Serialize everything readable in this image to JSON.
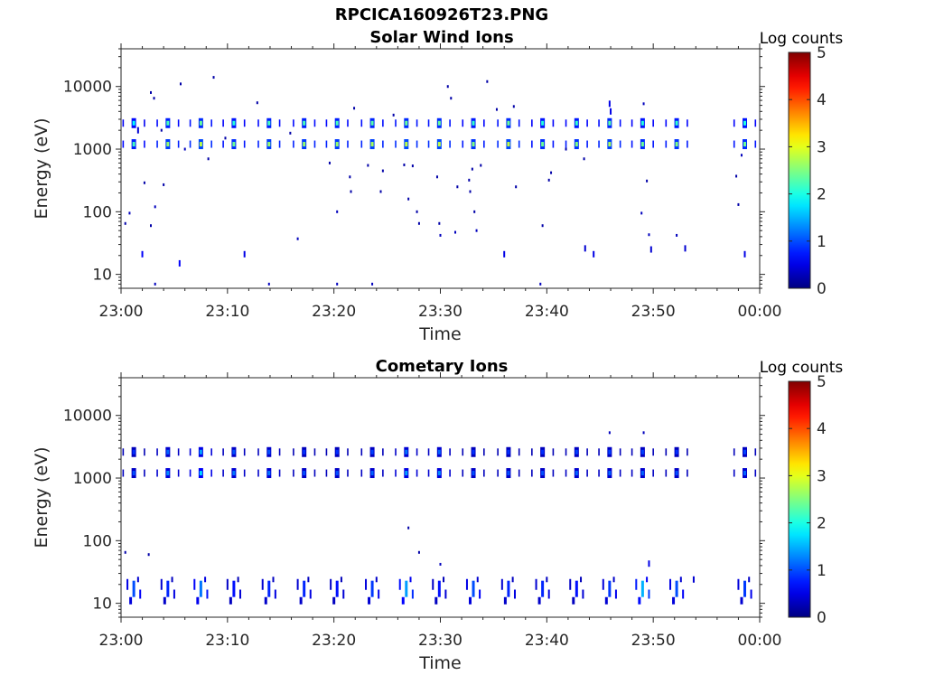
{
  "figure_title": "RPCICA160926T23.PNG",
  "chart_data": [
    {
      "type": "heatmap",
      "title": "Solar Wind Ions",
      "xlabel": "Time",
      "ylabel": "Energy (eV)",
      "x_ticks": [
        "23:00",
        "23:10",
        "23:20",
        "23:30",
        "23:40",
        "23:50",
        "00:00"
      ],
      "y_ticks": [
        "10",
        "100",
        "1000",
        "10000"
      ],
      "y_scale": "log",
      "ylim": [
        6,
        40000
      ],
      "xlim_minutes": [
        0,
        60
      ],
      "colorbar": {
        "label": "Log counts",
        "ticks": [
          "0",
          "1",
          "2",
          "3",
          "4",
          "5"
        ],
        "range": [
          0,
          5
        ],
        "colormap": "jet"
      },
      "bursts": [
        {
          "t": 1.2,
          "energies": [
            2600,
            1200
          ],
          "level": 2.2
        },
        {
          "t": 4.4,
          "energies": [
            2600,
            1200
          ],
          "level": 2.6
        },
        {
          "t": 7.5,
          "energies": [
            2600,
            1200
          ],
          "level": 2.8
        },
        {
          "t": 10.6,
          "energies": [
            2600,
            1200
          ],
          "level": 2.4
        },
        {
          "t": 13.9,
          "energies": [
            2600,
            1200
          ],
          "level": 2.6
        },
        {
          "t": 17.2,
          "energies": [
            2600,
            1200
          ],
          "level": 2.6
        },
        {
          "t": 20.3,
          "energies": [
            2600,
            1200
          ],
          "level": 2.6
        },
        {
          "t": 23.6,
          "energies": [
            2600,
            1200
          ],
          "level": 2.7
        },
        {
          "t": 26.8,
          "energies": [
            2600,
            1200
          ],
          "level": 2.8
        },
        {
          "t": 29.9,
          "energies": [
            2600,
            1200
          ],
          "level": 2.8
        },
        {
          "t": 33.1,
          "energies": [
            2600,
            1200
          ],
          "level": 2.5
        },
        {
          "t": 36.4,
          "energies": [
            2600,
            1200
          ],
          "level": 2.8
        },
        {
          "t": 39.6,
          "energies": [
            2600,
            1200
          ],
          "level": 2.4
        },
        {
          "t": 42.8,
          "energies": [
            2600,
            1200
          ],
          "level": 2.5
        },
        {
          "t": 45.9,
          "energies": [
            2600,
            1200
          ],
          "level": 2.7
        },
        {
          "t": 49.0,
          "energies": [
            2600,
            1200
          ],
          "level": 2.4
        },
        {
          "t": 52.2,
          "energies": [
            2600,
            1200
          ],
          "level": 2.5
        },
        {
          "t": 58.6,
          "energies": [
            2600,
            1200
          ],
          "level": 2.4
        }
      ],
      "scatter": [
        {
          "t": 0.4,
          "e": 65,
          "level": 0.2
        },
        {
          "t": 0.8,
          "e": 95,
          "level": 0.3
        },
        {
          "t": 1.6,
          "e": 2000,
          "level": 0.4
        },
        {
          "t": 2.0,
          "e": 21,
          "level": 0.6
        },
        {
          "t": 2.2,
          "e": 290,
          "level": 0.2
        },
        {
          "t": 2.8,
          "e": 60,
          "level": 0.2
        },
        {
          "t": 2.8,
          "e": 8000,
          "level": 0.2
        },
        {
          "t": 3.1,
          "e": 6500,
          "level": 0.2
        },
        {
          "t": 3.2,
          "e": 120,
          "level": 0.3
        },
        {
          "t": 3.2,
          "e": 7,
          "level": 0.3
        },
        {
          "t": 3.8,
          "e": 2000,
          "level": 0.2
        },
        {
          "t": 4.0,
          "e": 270,
          "level": 0.2
        },
        {
          "t": 5.5,
          "e": 15,
          "level": 0.6
        },
        {
          "t": 5.6,
          "e": 11000,
          "level": 0.2
        },
        {
          "t": 6.0,
          "e": 1000,
          "level": 0.3
        },
        {
          "t": 8.2,
          "e": 700,
          "level": 0.2
        },
        {
          "t": 8.7,
          "e": 14000,
          "level": 0.2
        },
        {
          "t": 9.8,
          "e": 1500,
          "level": 0.2
        },
        {
          "t": 11.6,
          "e": 21,
          "level": 0.5
        },
        {
          "t": 12.8,
          "e": 5500,
          "level": 0.2
        },
        {
          "t": 13.9,
          "e": 7,
          "level": 0.3
        },
        {
          "t": 15.9,
          "e": 1800,
          "level": 0.2
        },
        {
          "t": 16.6,
          "e": 37,
          "level": 0.3
        },
        {
          "t": 19.6,
          "e": 600,
          "level": 0.2
        },
        {
          "t": 20.3,
          "e": 100,
          "level": 0.3
        },
        {
          "t": 20.3,
          "e": 7,
          "level": 0.3
        },
        {
          "t": 21.5,
          "e": 360,
          "level": 0.2
        },
        {
          "t": 21.6,
          "e": 210,
          "level": 0.2
        },
        {
          "t": 21.9,
          "e": 4500,
          "level": 0.2
        },
        {
          "t": 23.2,
          "e": 550,
          "level": 0.2
        },
        {
          "t": 23.6,
          "e": 7,
          "level": 0.3
        },
        {
          "t": 24.4,
          "e": 210,
          "level": 0.2
        },
        {
          "t": 24.6,
          "e": 450,
          "level": 0.2
        },
        {
          "t": 25.6,
          "e": 3500,
          "level": 0.2
        },
        {
          "t": 26.6,
          "e": 560,
          "level": 0.2
        },
        {
          "t": 27.0,
          "e": 160,
          "level": 0.2
        },
        {
          "t": 27.4,
          "e": 540,
          "level": 0.2
        },
        {
          "t": 27.8,
          "e": 100,
          "level": 0.2
        },
        {
          "t": 28.0,
          "e": 65,
          "level": 0.2
        },
        {
          "t": 29.7,
          "e": 360,
          "level": 0.2
        },
        {
          "t": 29.9,
          "e": 65,
          "level": 0.2
        },
        {
          "t": 30.0,
          "e": 42,
          "level": 0.3
        },
        {
          "t": 30.7,
          "e": 10000,
          "level": 0.2
        },
        {
          "t": 31.0,
          "e": 6500,
          "level": 0.2
        },
        {
          "t": 31.4,
          "e": 47,
          "level": 0.3
        },
        {
          "t": 31.6,
          "e": 250,
          "level": 0.2
        },
        {
          "t": 32.7,
          "e": 320,
          "level": 0.2
        },
        {
          "t": 32.8,
          "e": 210,
          "level": 0.2
        },
        {
          "t": 33.0,
          "e": 480,
          "level": 0.2
        },
        {
          "t": 33.2,
          "e": 100,
          "level": 0.2
        },
        {
          "t": 33.4,
          "e": 50,
          "level": 0.3
        },
        {
          "t": 33.8,
          "e": 550,
          "level": 0.2
        },
        {
          "t": 34.4,
          "e": 12000,
          "level": 0.2
        },
        {
          "t": 35.3,
          "e": 4300,
          "level": 0.2
        },
        {
          "t": 36.0,
          "e": 21,
          "level": 0.5
        },
        {
          "t": 36.9,
          "e": 4800,
          "level": 0.2
        },
        {
          "t": 37.1,
          "e": 250,
          "level": 0.2
        },
        {
          "t": 39.6,
          "e": 60,
          "level": 0.2
        },
        {
          "t": 39.4,
          "e": 7,
          "level": 0.3
        },
        {
          "t": 40.2,
          "e": 320,
          "level": 0.2
        },
        {
          "t": 40.4,
          "e": 420,
          "level": 0.2
        },
        {
          "t": 41.8,
          "e": 1000,
          "level": 0.2
        },
        {
          "t": 43.5,
          "e": 700,
          "level": 0.2
        },
        {
          "t": 43.6,
          "e": 26,
          "level": 0.4
        },
        {
          "t": 44.4,
          "e": 21,
          "level": 0.5
        },
        {
          "t": 45.9,
          "e": 5300,
          "level": 0.5
        },
        {
          "t": 46.0,
          "e": 4000,
          "level": 0.5
        },
        {
          "t": 48.9,
          "e": 95,
          "level": 0.3
        },
        {
          "t": 49.1,
          "e": 5300,
          "level": 0.3
        },
        {
          "t": 49.4,
          "e": 310,
          "level": 0.2
        },
        {
          "t": 49.6,
          "e": 43,
          "level": 0.3
        },
        {
          "t": 49.8,
          "e": 25,
          "level": 0.4
        },
        {
          "t": 52.2,
          "e": 42,
          "level": 0.3
        },
        {
          "t": 53.0,
          "e": 26,
          "level": 0.4
        },
        {
          "t": 57.8,
          "e": 370,
          "level": 0.2
        },
        {
          "t": 58.0,
          "e": 130,
          "level": 0.2
        },
        {
          "t": 58.6,
          "e": 21,
          "level": 0.5
        },
        {
          "t": 58.3,
          "e": 800,
          "level": 0.3
        }
      ]
    },
    {
      "type": "heatmap",
      "title": "Cometary Ions",
      "xlabel": "Time",
      "ylabel": "Energy (eV)",
      "x_ticks": [
        "23:00",
        "23:10",
        "23:20",
        "23:30",
        "23:40",
        "23:50",
        "00:00"
      ],
      "y_ticks": [
        "10",
        "100",
        "1000",
        "10000"
      ],
      "y_scale": "log",
      "ylim": [
        6,
        40000
      ],
      "xlim_minutes": [
        0,
        60
      ],
      "colorbar": {
        "label": "Log counts",
        "ticks": [
          "0",
          "1",
          "2",
          "3",
          "4",
          "5"
        ],
        "range": [
          0,
          5
        ],
        "colormap": "jet"
      },
      "bursts": [
        {
          "t": 1.2,
          "energies": [
            2600,
            1200
          ],
          "level": 1.0
        },
        {
          "t": 4.4,
          "energies": [
            2600,
            1200
          ],
          "level": 1.3
        },
        {
          "t": 7.5,
          "energies": [
            2600,
            1200
          ],
          "level": 1.7
        },
        {
          "t": 10.6,
          "energies": [
            2600,
            1200
          ],
          "level": 1.2
        },
        {
          "t": 13.9,
          "energies": [
            2600,
            1200
          ],
          "level": 1.2
        },
        {
          "t": 17.2,
          "energies": [
            2600,
            1200
          ],
          "level": 1.0
        },
        {
          "t": 20.3,
          "energies": [
            2600,
            1200
          ],
          "level": 1.0
        },
        {
          "t": 23.6,
          "energies": [
            2600,
            1200
          ],
          "level": 1.1
        },
        {
          "t": 26.8,
          "energies": [
            2600,
            1200
          ],
          "level": 1.4
        },
        {
          "t": 29.9,
          "energies": [
            2600,
            1200
          ],
          "level": 1.3
        },
        {
          "t": 33.1,
          "energies": [
            2600,
            1200
          ],
          "level": 1.0
        },
        {
          "t": 36.4,
          "energies": [
            2600,
            1200
          ],
          "level": 1.0
        },
        {
          "t": 39.6,
          "energies": [
            2600,
            1200
          ],
          "level": 1.0
        },
        {
          "t": 42.8,
          "energies": [
            2600,
            1200
          ],
          "level": 1.1
        },
        {
          "t": 45.9,
          "energies": [
            2600,
            1200
          ],
          "level": 1.1
        },
        {
          "t": 49.0,
          "energies": [
            2600,
            1200
          ],
          "level": 1.1
        },
        {
          "t": 52.2,
          "energies": [
            2600,
            1200
          ],
          "level": 1.0
        },
        {
          "t": 58.6,
          "energies": [
            2600,
            1200
          ],
          "level": 1.1
        }
      ],
      "low_bands": [
        {
          "t": 1.2,
          "level": 1.0
        },
        {
          "t": 4.4,
          "level": 0.8
        },
        {
          "t": 7.5,
          "level": 1.2
        },
        {
          "t": 10.6,
          "level": 0.7
        },
        {
          "t": 13.9,
          "level": 0.8
        },
        {
          "t": 17.2,
          "level": 0.8
        },
        {
          "t": 20.3,
          "level": 0.7
        },
        {
          "t": 23.6,
          "level": 0.9
        },
        {
          "t": 26.8,
          "level": 1.4
        },
        {
          "t": 29.9,
          "level": 0.7
        },
        {
          "t": 33.1,
          "level": 1.0
        },
        {
          "t": 36.4,
          "level": 0.8
        },
        {
          "t": 39.6,
          "level": 0.8
        },
        {
          "t": 42.8,
          "level": 0.7
        },
        {
          "t": 45.9,
          "level": 0.9
        },
        {
          "t": 49.0,
          "level": 1.5
        },
        {
          "t": 52.2,
          "level": 1.0
        },
        {
          "t": 58.6,
          "level": 0.9
        }
      ],
      "scatter": [
        {
          "t": 0.4,
          "e": 65,
          "level": 0.2
        },
        {
          "t": 2.6,
          "e": 60,
          "level": 0.2
        },
        {
          "t": 27.0,
          "e": 160,
          "level": 0.2
        },
        {
          "t": 28.0,
          "e": 65,
          "level": 0.2
        },
        {
          "t": 30.0,
          "e": 42,
          "level": 0.3
        },
        {
          "t": 45.9,
          "e": 5300,
          "level": 0.3
        },
        {
          "t": 49.1,
          "e": 5300,
          "level": 0.3
        },
        {
          "t": 49.6,
          "e": 43,
          "level": 0.5
        },
        {
          "t": 53.8,
          "e": 24,
          "level": 0.4
        }
      ]
    }
  ]
}
